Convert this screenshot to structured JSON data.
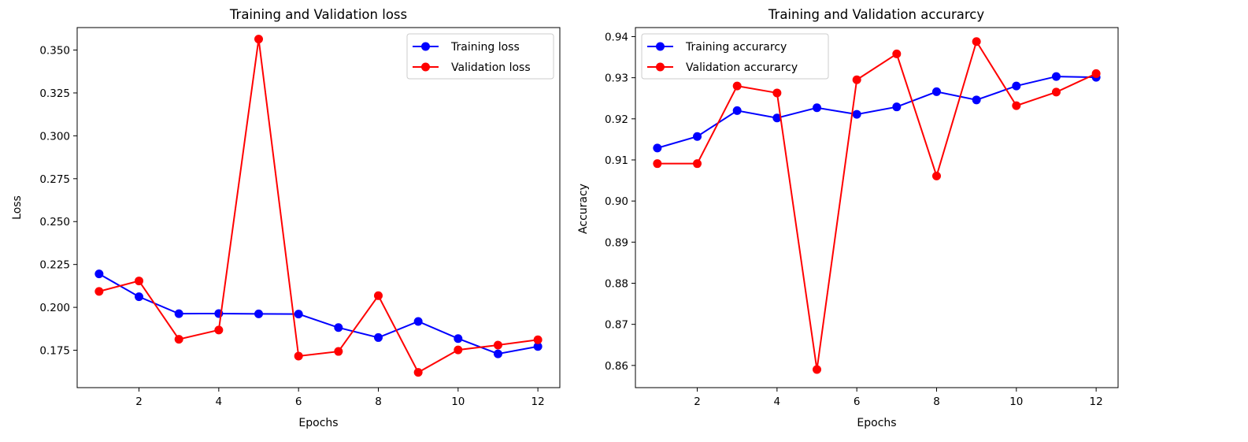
{
  "chart_data": [
    {
      "type": "line",
      "title": "Training and Validation loss",
      "xlabel": "Epochs",
      "ylabel": "Loss",
      "xlim": [
        0.45,
        12.55
      ],
      "ylim": [
        0.1532,
        0.3631
      ],
      "xticks": [
        2,
        4,
        6,
        8,
        10,
        12
      ],
      "yticks": [
        0.175,
        0.2,
        0.225,
        0.25,
        0.275,
        0.3,
        0.325,
        0.35
      ],
      "ytick_labels": [
        "0.175",
        "0.200",
        "0.225",
        "0.250",
        "0.275",
        "0.300",
        "0.325",
        "0.350"
      ],
      "legend_position": "upper-right",
      "x": [
        1,
        2,
        3,
        4,
        5,
        6,
        7,
        8,
        9,
        10,
        11,
        12
      ],
      "series": [
        {
          "name": "Training loss",
          "color": "#0000ff",
          "values": [
            0.2195,
            0.2062,
            0.1963,
            0.1964,
            0.1962,
            0.1961,
            0.1882,
            0.1824,
            0.1918,
            0.1818,
            0.1729,
            0.1772
          ]
        },
        {
          "name": "Validation loss",
          "color": "#ff0000",
          "values": [
            0.2093,
            0.2154,
            0.1814,
            0.1868,
            0.3564,
            0.1716,
            0.1743,
            0.2068,
            0.1621,
            0.1752,
            0.178,
            0.1811
          ]
        }
      ]
    },
    {
      "type": "line",
      "title": "Training and Validation accurarcy",
      "xlabel": "Epochs",
      "ylabel": "Accuracy",
      "xlim": [
        0.45,
        12.55
      ],
      "ylim": [
        0.8546,
        0.9422
      ],
      "xticks": [
        2,
        4,
        6,
        8,
        10,
        12
      ],
      "yticks": [
        0.86,
        0.87,
        0.88,
        0.89,
        0.9,
        0.91,
        0.92,
        0.93,
        0.94
      ],
      "ytick_labels": [
        "0.86",
        "0.87",
        "0.88",
        "0.89",
        "0.90",
        "0.91",
        "0.92",
        "0.93",
        "0.94"
      ],
      "legend_position": "upper-left",
      "x": [
        1,
        2,
        3,
        4,
        5,
        6,
        7,
        8,
        9,
        10,
        11,
        12
      ],
      "series": [
        {
          "name": "Training accurarcy",
          "color": "#0000ff",
          "values": [
            0.9129,
            0.9157,
            0.922,
            0.9202,
            0.9227,
            0.9211,
            0.9229,
            0.9266,
            0.9246,
            0.928,
            0.9303,
            0.9301
          ]
        },
        {
          "name": "Validation accurarcy",
          "color": "#ff0000",
          "values": [
            0.9091,
            0.9091,
            0.928,
            0.9263,
            0.859,
            0.9295,
            0.9358,
            0.9061,
            0.9388,
            0.9232,
            0.9265,
            0.931
          ]
        }
      ]
    }
  ]
}
